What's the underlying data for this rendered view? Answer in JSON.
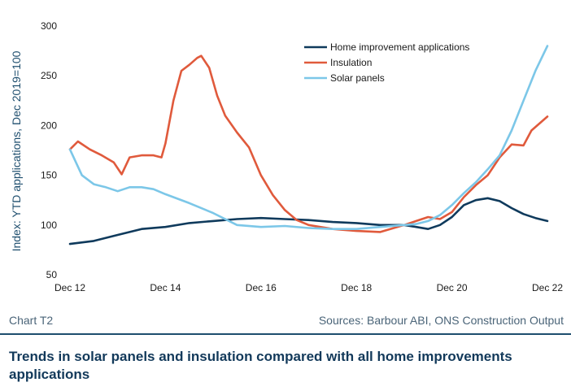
{
  "chart_data": {
    "type": "line",
    "ylabel": "Index: YTD applications, Dec 2019=100",
    "ylim": [
      50,
      300
    ],
    "yticks": [
      50,
      100,
      150,
      200,
      250,
      300
    ],
    "xlim": [
      "Dec 12",
      "Dec 22"
    ],
    "xticks": [
      "Dec 12",
      "Dec 14",
      "Dec 16",
      "Dec 18",
      "Dec 20",
      "Dec 22"
    ],
    "grid": false,
    "legend_position": "top-right",
    "series": [
      {
        "name": "Home improvement applications",
        "color": "#0f3a5c",
        "points": [
          [
            "Dec 12",
            81
          ],
          [
            "Jun 13",
            84
          ],
          [
            "Dec 13",
            90
          ],
          [
            "Jun 14",
            96
          ],
          [
            "Dec 14",
            98
          ],
          [
            "Jun 15",
            102
          ],
          [
            "Dec 15",
            104
          ],
          [
            "Jun 16",
            106
          ],
          [
            "Dec 16",
            107
          ],
          [
            "Jun 17",
            106
          ],
          [
            "Dec 17",
            105
          ],
          [
            "Jun 18",
            103
          ],
          [
            "Dec 18",
            102
          ],
          [
            "Jun 19",
            100
          ],
          [
            "Dec 19",
            100
          ],
          [
            "Mar 20",
            98
          ],
          [
            "Jun 20",
            96
          ],
          [
            "Sep 20",
            100
          ],
          [
            "Dec 20",
            108
          ],
          [
            "Mar 21",
            120
          ],
          [
            "Jun 21",
            125
          ],
          [
            "Sep 21",
            127
          ],
          [
            "Dec 21",
            124
          ],
          [
            "Mar 22",
            117
          ],
          [
            "Jun 22",
            111
          ],
          [
            "Sep 22",
            107
          ],
          [
            "Dec 22",
            104
          ]
        ]
      },
      {
        "name": "Insulation",
        "color": "#e05a3c",
        "points": [
          [
            "Dec 12",
            176
          ],
          [
            "Feb 13",
            184
          ],
          [
            "May 13",
            176
          ],
          [
            "Aug 13",
            170
          ],
          [
            "Nov 13",
            163
          ],
          [
            "Jan 14",
            151
          ],
          [
            "Mar 14",
            168
          ],
          [
            "Jun 14",
            170
          ],
          [
            "Sep 14",
            170
          ],
          [
            "Nov 14",
            168
          ],
          [
            "Dec 14",
            182
          ],
          [
            "Feb 15",
            225
          ],
          [
            "Apr 15",
            255
          ],
          [
            "Jun 15",
            261
          ],
          [
            "Aug 15",
            268
          ],
          [
            "Sep 15",
            270
          ],
          [
            "Nov 15",
            258
          ],
          [
            "Jan 16",
            230
          ],
          [
            "Mar 16",
            210
          ],
          [
            "Jun 16",
            193
          ],
          [
            "Sep 16",
            178
          ],
          [
            "Dec 16",
            150
          ],
          [
            "Mar 17",
            130
          ],
          [
            "Jun 17",
            115
          ],
          [
            "Sep 17",
            105
          ],
          [
            "Dec 17",
            100
          ],
          [
            "Jun 18",
            96
          ],
          [
            "Dec 18",
            94
          ],
          [
            "Jun 19",
            93
          ],
          [
            "Dec 19",
            100
          ],
          [
            "Mar 20",
            104
          ],
          [
            "Jun 20",
            108
          ],
          [
            "Sep 20",
            106
          ],
          [
            "Dec 20",
            113
          ],
          [
            "Mar 21",
            128
          ],
          [
            "Jun 21",
            140
          ],
          [
            "Sep 21",
            150
          ],
          [
            "Dec 21",
            168
          ],
          [
            "Mar 22",
            181
          ],
          [
            "Jun 22",
            180
          ],
          [
            "Aug 22",
            195
          ],
          [
            "Dec 22",
            209
          ]
        ]
      },
      {
        "name": "Solar panels",
        "color": "#7cc7e8",
        "points": [
          [
            "Dec 12",
            176
          ],
          [
            "Mar 13",
            150
          ],
          [
            "Jun 13",
            141
          ],
          [
            "Sep 13",
            138
          ],
          [
            "Dec 13",
            134
          ],
          [
            "Mar 14",
            138
          ],
          [
            "Jun 14",
            138
          ],
          [
            "Sep 14",
            136
          ],
          [
            "Dec 14",
            131
          ],
          [
            "Jun 15",
            122
          ],
          [
            "Dec 15",
            112
          ],
          [
            "Jun 16",
            100
          ],
          [
            "Dec 16",
            98
          ],
          [
            "Jun 17",
            99
          ],
          [
            "Dec 17",
            97
          ],
          [
            "Jun 18",
            96
          ],
          [
            "Dec 18",
            96
          ],
          [
            "Jun 19",
            98
          ],
          [
            "Dec 19",
            100
          ],
          [
            "Mar 20",
            101
          ],
          [
            "Jun 20",
            104
          ],
          [
            "Sep 20",
            110
          ],
          [
            "Dec 20",
            120
          ],
          [
            "Mar 21",
            132
          ],
          [
            "Jun 21",
            143
          ],
          [
            "Sep 21",
            156
          ],
          [
            "Dec 21",
            170
          ],
          [
            "Mar 22",
            195
          ],
          [
            "Jun 22",
            225
          ],
          [
            "Sep 22",
            255
          ],
          [
            "Dec 22",
            280
          ]
        ]
      }
    ]
  },
  "footer": {
    "chart_id": "Chart T2",
    "sources": "Sources: Barbour ABI, ONS Construction Output"
  },
  "title": "Trends in solar panels and insulation compared with all home improvements applications",
  "colors": {
    "rule": "#1e4e6e",
    "title": "#12395a"
  }
}
